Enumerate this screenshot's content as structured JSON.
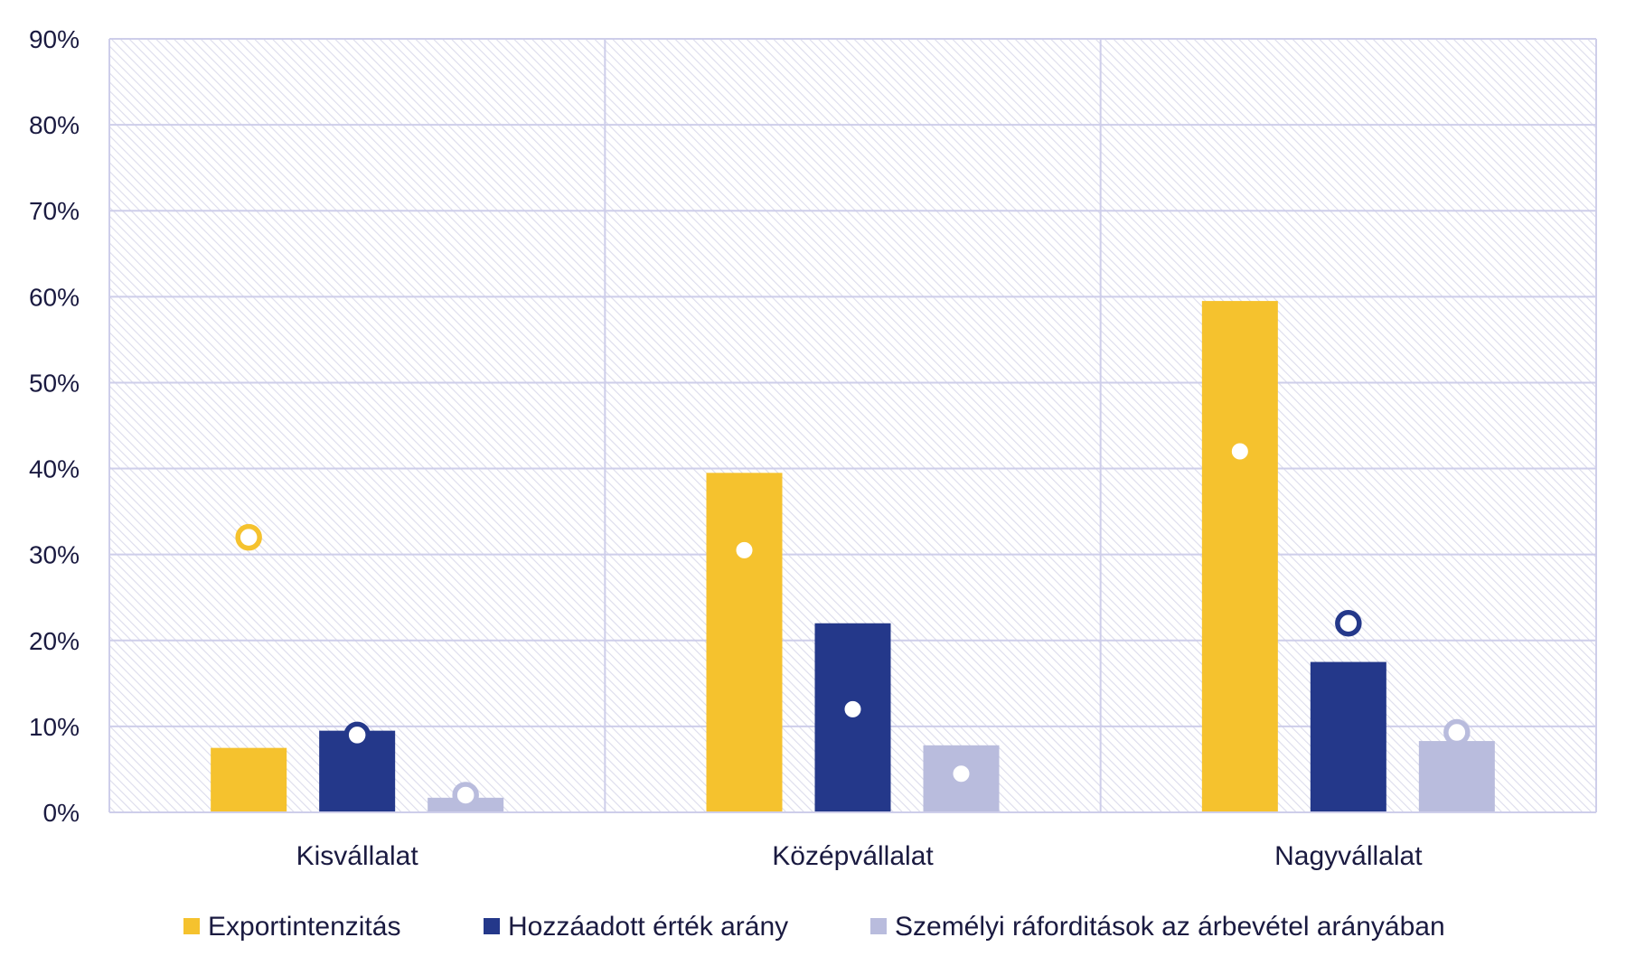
{
  "chart_data": {
    "type": "bar",
    "categories": [
      "Kisvállalat",
      "Középvállalat",
      "Nagyvállalat"
    ],
    "series": [
      {
        "name": "Exportintenzitás",
        "color": "#F5C22E",
        "values": [
          7.5,
          39.5,
          59.5
        ],
        "markers": [
          32,
          30.5,
          42
        ],
        "marker_style": [
          "hollow",
          "dot",
          "dot"
        ]
      },
      {
        "name": "Hozzáadott érték arány",
        "color": "#24388A",
        "values": [
          9.5,
          22,
          17.5
        ],
        "markers": [
          9,
          12,
          22
        ],
        "marker_style": [
          "hollow",
          "dot",
          "hollow"
        ]
      },
      {
        "name": "Személyi ráforditások az árbevétel arányában",
        "color": "#B9BCDD",
        "values": [
          1.7,
          7.8,
          8.3
        ],
        "markers": [
          2,
          4.5,
          9.3
        ],
        "marker_style": [
          "hollow",
          "dot",
          "hollow"
        ]
      }
    ],
    "y_ticks": [
      "0%",
      "10%",
      "20%",
      "30%",
      "40%",
      "50%",
      "60%",
      "70%",
      "80%",
      "90%"
    ],
    "ylim": [
      0,
      90
    ],
    "grid": true,
    "legend_position": "bottom",
    "title": "",
    "xlabel": "",
    "ylabel": ""
  }
}
